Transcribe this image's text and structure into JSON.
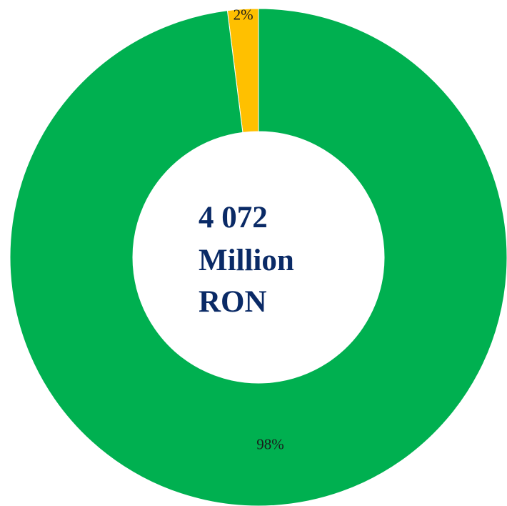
{
  "chart_data": {
    "type": "pie",
    "variant": "donut",
    "categories": [
      "",
      ""
    ],
    "values": [
      2,
      98
    ],
    "data_labels": [
      "2%",
      "98%"
    ],
    "colors": [
      "#FFC000",
      "#00B050"
    ],
    "center_label": {
      "line1": "4 072",
      "line2": "Million",
      "line3": "RON"
    },
    "title": "",
    "legend": "none"
  }
}
